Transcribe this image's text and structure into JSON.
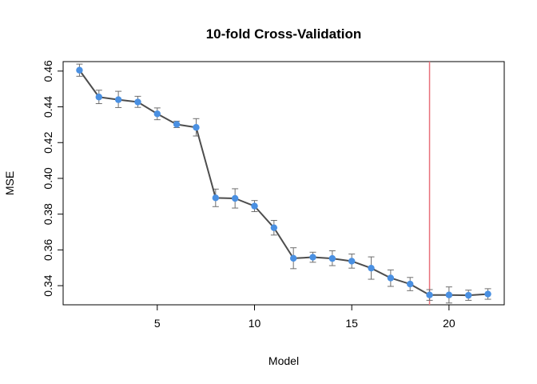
{
  "chart_data": {
    "type": "line",
    "title": "10-fold Cross-Validation",
    "xlabel": "Model",
    "ylabel": "MSE",
    "xlim": [
      0.16,
      22.84
    ],
    "ylim": [
      0.3293,
      0.4653
    ],
    "xticks": [
      5,
      10,
      15,
      20
    ],
    "yticks": [
      0.34,
      0.36,
      0.38,
      0.4,
      0.42,
      0.44,
      0.46
    ],
    "ytick_labels": [
      "0.34",
      "0.36",
      "0.38",
      "0.40",
      "0.42",
      "0.44",
      "0.46"
    ],
    "grid": false,
    "series": [
      {
        "x": [
          1,
          2,
          3,
          4,
          5,
          6,
          7,
          8,
          9,
          10,
          11,
          12,
          13,
          14,
          15,
          16,
          17,
          18,
          19,
          20,
          21,
          22
        ],
        "y": [
          0.4605,
          0.4455,
          0.444,
          0.4427,
          0.4361,
          0.4302,
          0.4285,
          0.3891,
          0.3888,
          0.3845,
          0.3724,
          0.3553,
          0.3559,
          0.3552,
          0.3537,
          0.3498,
          0.3443,
          0.3409,
          0.3348,
          0.3348,
          0.3346,
          0.3353
        ],
        "err_low": [
          0.4571,
          0.4418,
          0.4396,
          0.4397,
          0.4328,
          0.4284,
          0.4237,
          0.3842,
          0.3834,
          0.3814,
          0.3683,
          0.3495,
          0.3531,
          0.3512,
          0.3498,
          0.3436,
          0.3396,
          0.3372,
          0.3318,
          0.3303,
          0.3318,
          0.3324
        ],
        "err_high": [
          0.4639,
          0.4493,
          0.4487,
          0.4459,
          0.4394,
          0.432,
          0.4334,
          0.394,
          0.3942,
          0.3876,
          0.3765,
          0.3612,
          0.3587,
          0.3595,
          0.3577,
          0.3561,
          0.3488,
          0.3446,
          0.3378,
          0.3393,
          0.3375,
          0.3383
        ]
      }
    ],
    "vline_x": 19,
    "colors": {
      "line": "#4d4d4d",
      "point": "#4a90e2",
      "errorbar": "#6e6e6e",
      "vline": "#e8707a",
      "frame": "#000000"
    }
  }
}
